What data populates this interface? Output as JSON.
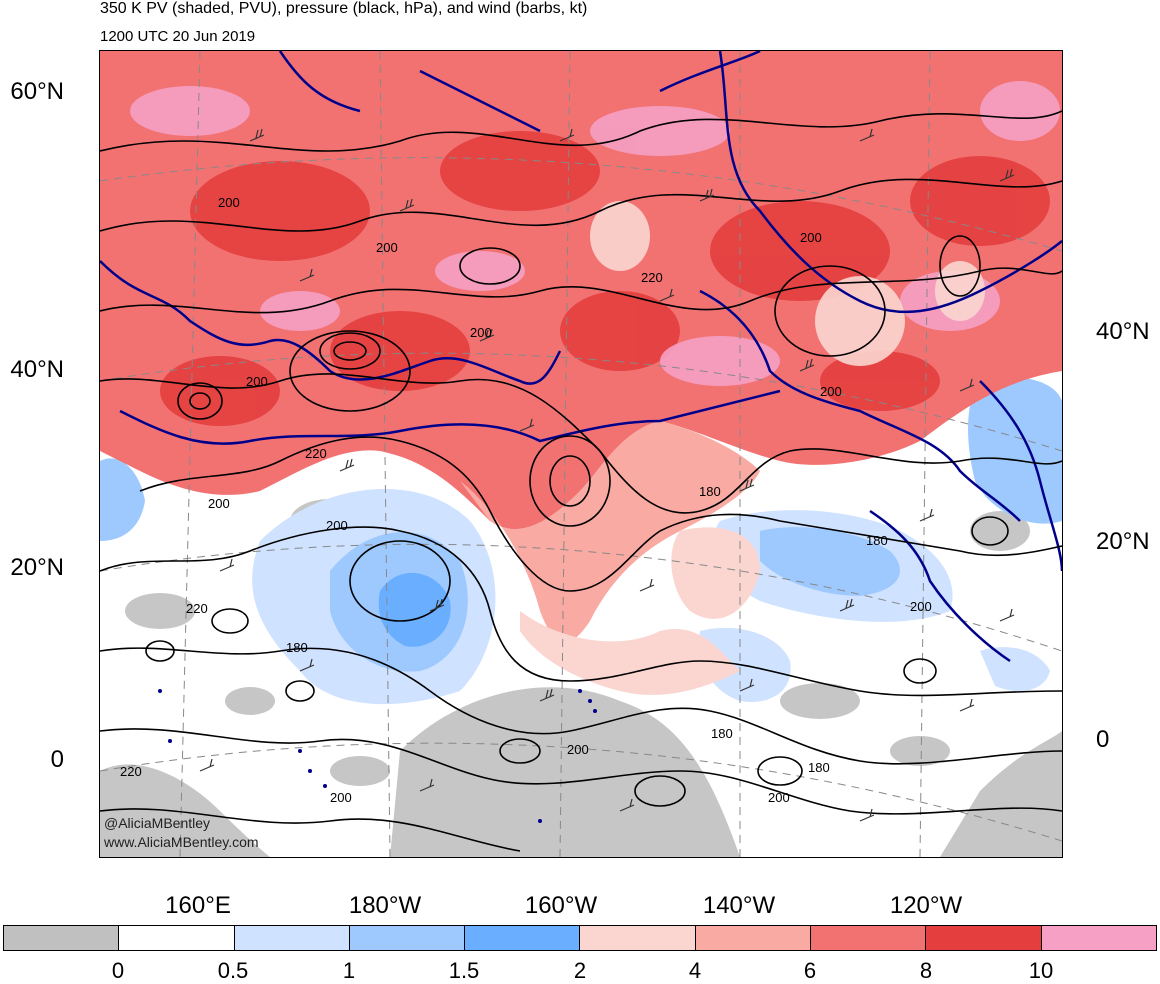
{
  "header": {
    "title": "350 K PV (shaded, PVU), pressure (black, hPa), and wind (barbs, kt)",
    "valid_time": "1200 UTC 20 Jun 2019"
  },
  "map": {
    "lat_labels_left": [
      "60°N",
      "40°N",
      "20°N",
      "0"
    ],
    "lat_labels_right": [
      "40°N",
      "20°N",
      "0"
    ],
    "lon_labels": [
      "160°E",
      "180°W",
      "160°W",
      "140°W",
      "120°W"
    ],
    "contour_labels": [
      "200",
      "200",
      "200",
      "200",
      "220",
      "200",
      "200",
      "220",
      "200",
      "200",
      "180",
      "220",
      "180",
      "200",
      "180",
      "200",
      "220",
      "200",
      "180",
      "200",
      "180",
      "200"
    ],
    "colors": {
      "pv_0_0.5": "#c0c0c0",
      "pv_0.5_1": "#ffffff",
      "pv_1_1.5": "#cfe2ff",
      "pv_1.5_2": "#9ec9ff",
      "pv_2_4": "#6aaeff",
      "pv_4_6": "#fbd6d0",
      "pv_6_8": "#f9aaa2",
      "pv_8_10": "#f27272",
      "pv_10_plus_a": "#e43e3e",
      "pv_10_plus_b": "#f5a0c4",
      "contour": "#000000",
      "coastline": "#00008b"
    }
  },
  "watermark": {
    "handle": "@AliciaMBentley",
    "url": "www.AliciaMBentley.com"
  },
  "colorbar": {
    "colors": [
      "#c0c0c0",
      "#ffffff",
      "#cfe2ff",
      "#9ec9ff",
      "#6aaeff",
      "#fbd6d0",
      "#f9aaa2",
      "#f27272",
      "#e43e3e",
      "#f5a0c4"
    ],
    "tick_labels": [
      "0",
      "0.5",
      "1",
      "1.5",
      "2",
      "4",
      "6",
      "8",
      "10"
    ]
  }
}
